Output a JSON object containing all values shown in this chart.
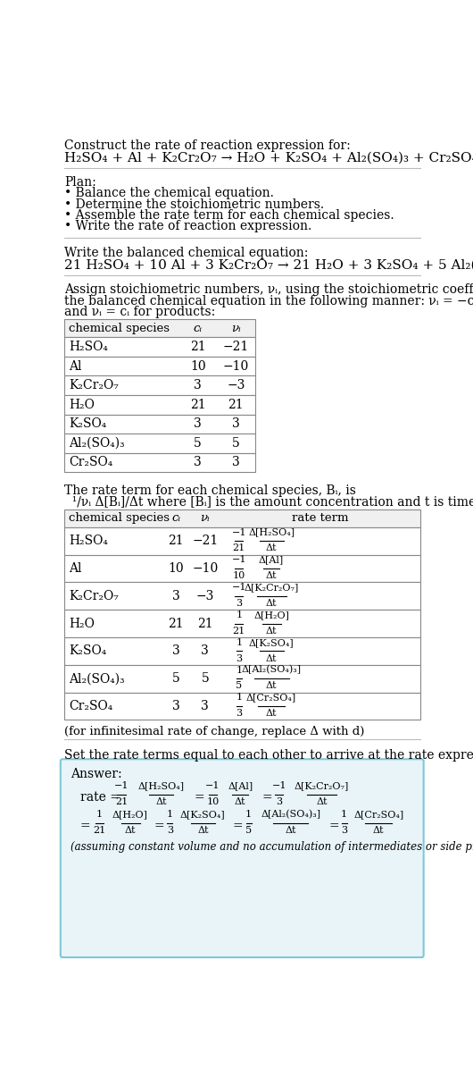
{
  "bg_color": "#ffffff",
  "text_color": "#000000",
  "plan_items": [
    "• Balance the chemical equation.",
    "• Determine the stoichiometric numbers.",
    "• Assemble the rate term for each chemical species.",
    "• Write the rate of reaction expression."
  ],
  "table1_rows": [
    [
      "H₂SO₄",
      "21",
      "−21"
    ],
    [
      "Al",
      "10",
      "−10"
    ],
    [
      "K₂Cr₂O₇",
      "3",
      "−3"
    ],
    [
      "H₂O",
      "21",
      "21"
    ],
    [
      "K₂SO₄",
      "3",
      "3"
    ],
    [
      "Al₂(SO₄)₃",
      "5",
      "5"
    ],
    [
      "Cr₂SO₄",
      "3",
      "3"
    ]
  ],
  "table2_rows": [
    [
      "H₂SO₄",
      "21",
      "−21",
      "−1",
      "21",
      "Δ[H₂SO₄]",
      "Δt"
    ],
    [
      "Al",
      "10",
      "−10",
      "−1",
      "10",
      "Δ[Al]",
      "Δt"
    ],
    [
      "K₂Cr₂O₇",
      "3",
      "−3",
      "−1",
      "3",
      "Δ[K₂Cr₂O₇]",
      "Δt"
    ],
    [
      "H₂O",
      "21",
      "21",
      "1",
      "21",
      "Δ[H₂O]",
      "Δt"
    ],
    [
      "K₂SO₄",
      "3",
      "3",
      "1",
      "3",
      "Δ[K₂SO₄]",
      "Δt"
    ],
    [
      "Al₂(SO₄)₃",
      "5",
      "5",
      "1",
      "5",
      "Δ[Al₂(SO₄)₃]",
      "Δt"
    ],
    [
      "Cr₂SO₄",
      "3",
      "3",
      "1",
      "3",
      "Δ[Cr₂SO₄]",
      "Δt"
    ]
  ],
  "answer_box_color": "#e8f4f8",
  "answer_box_border": "#7ec8d8"
}
